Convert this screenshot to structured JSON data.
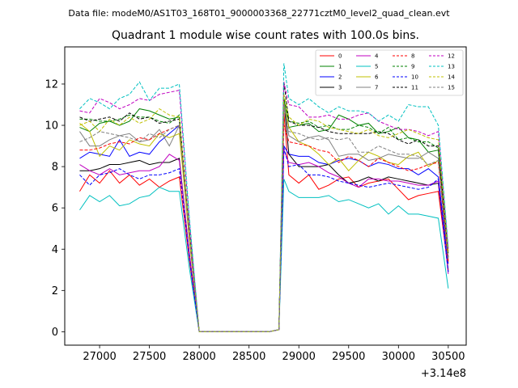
{
  "chart_data": {
    "type": "line",
    "suptitle": "Data file: modeM0/AS1T03_168T01_9000003368_22771cztM0_level2_quad_clean.evt",
    "title": "Quadrant 1 module wise count rates with 100.0s bins.",
    "xlabel": "",
    "ylabel": "",
    "x_offset_label": "+3.14e8",
    "xlim": [
      26650,
      30680
    ],
    "ylim": [
      -0.65,
      13.8
    ],
    "xticks": [
      27000,
      27500,
      28000,
      28500,
      29000,
      29500,
      30000,
      30500
    ],
    "xtick_labels": [
      "27000",
      "27500",
      "28000",
      "28500",
      "29000",
      "29500",
      "30000",
      "30500"
    ],
    "yticks": [
      0,
      2,
      4,
      6,
      8,
      10,
      12
    ],
    "ytick_labels": [
      "0",
      "2",
      "4",
      "6",
      "8",
      "10",
      "12"
    ],
    "legend_position": "top-right",
    "x": [
      26800,
      26900,
      27000,
      27100,
      27200,
      27300,
      27400,
      27500,
      27600,
      27700,
      27800,
      27900,
      28000,
      28100,
      28200,
      28300,
      28400,
      28500,
      28600,
      28700,
      28800,
      28850,
      28900,
      29000,
      29100,
      29200,
      29300,
      29400,
      29500,
      29600,
      29700,
      29800,
      29900,
      30000,
      30100,
      30200,
      30300,
      30400,
      30500
    ],
    "series": [
      {
        "name": "0",
        "color": "#ff0000",
        "dash": "solid",
        "values": [
          6.8,
          7.6,
          7.2,
          7.8,
          7.2,
          7.6,
          7.1,
          7.4,
          7.0,
          7.3,
          7.5,
          3.5,
          0.0,
          0.0,
          0.0,
          0.0,
          0.0,
          0.0,
          0.0,
          0.0,
          0.1,
          10.6,
          7.6,
          7.2,
          7.6,
          6.9,
          7.1,
          7.4,
          7.5,
          7.0,
          7.2,
          7.3,
          7.4,
          6.9,
          6.4,
          6.6,
          6.7,
          6.8,
          3.0
        ]
      },
      {
        "name": "1",
        "color": "#008000",
        "dash": "solid",
        "values": [
          9.9,
          9.7,
          10.1,
          10.2,
          10.0,
          10.2,
          10.8,
          10.7,
          10.5,
          10.3,
          10.4,
          4.9,
          0.0,
          0.0,
          0.0,
          0.0,
          0.0,
          0.0,
          0.0,
          0.0,
          0.1,
          11.3,
          9.9,
          10.0,
          10.1,
          9.7,
          9.8,
          10.5,
          10.3,
          10.0,
          10.1,
          9.6,
          9.7,
          9.9,
          9.4,
          9.3,
          8.7,
          8.8,
          3.9
        ]
      },
      {
        "name": "2",
        "color": "#0000ff",
        "dash": "solid",
        "values": [
          8.4,
          8.7,
          8.6,
          8.5,
          9.3,
          8.5,
          8.7,
          8.6,
          9.2,
          9.6,
          10.0,
          4.6,
          0.0,
          0.0,
          0.0,
          0.0,
          0.0,
          0.0,
          0.0,
          0.0,
          0.1,
          9.0,
          8.6,
          8.5,
          8.5,
          8.2,
          8.1,
          8.3,
          8.4,
          8.3,
          8.0,
          8.2,
          8.1,
          7.9,
          7.9,
          7.6,
          7.9,
          7.5,
          3.3
        ]
      },
      {
        "name": "3",
        "color": "#000000",
        "dash": "solid",
        "values": [
          7.8,
          7.8,
          7.9,
          8.1,
          8.1,
          8.2,
          8.3,
          8.1,
          8.2,
          8.2,
          8.4,
          3.8,
          0.0,
          0.0,
          0.0,
          0.0,
          0.0,
          0.0,
          0.0,
          0.0,
          0.1,
          11.2,
          8.6,
          8.0,
          8.0,
          8.0,
          8.1,
          7.6,
          7.2,
          7.3,
          7.5,
          7.3,
          7.5,
          7.4,
          7.3,
          7.2,
          7.1,
          7.2,
          2.9
        ]
      },
      {
        "name": "4",
        "color": "#c000c0",
        "dash": "solid",
        "values": [
          8.1,
          7.8,
          7.6,
          7.9,
          7.6,
          7.7,
          7.8,
          7.8,
          8.0,
          8.6,
          8.3,
          3.8,
          0.0,
          0.0,
          0.0,
          0.0,
          0.0,
          0.0,
          0.0,
          0.0,
          0.1,
          8.8,
          8.2,
          8.1,
          8.2,
          8.0,
          7.7,
          7.5,
          7.2,
          7.0,
          7.4,
          7.4,
          7.3,
          7.3,
          7.2,
          7.1,
          7.1,
          7.3,
          2.8
        ]
      },
      {
        "name": "5",
        "color": "#00c0c0",
        "dash": "solid",
        "values": [
          5.9,
          6.6,
          6.3,
          6.6,
          6.1,
          6.2,
          6.5,
          6.6,
          7.0,
          6.8,
          6.8,
          3.1,
          0.0,
          0.0,
          0.0,
          0.0,
          0.0,
          0.0,
          0.0,
          0.0,
          0.1,
          7.4,
          6.8,
          6.5,
          6.5,
          6.5,
          6.6,
          6.3,
          6.4,
          6.2,
          6.0,
          6.2,
          5.7,
          6.1,
          5.7,
          5.7,
          5.6,
          5.5,
          2.1
        ]
      },
      {
        "name": "6",
        "color": "#c0c000",
        "dash": "solid",
        "values": [
          10.1,
          9.7,
          8.5,
          9.0,
          8.8,
          9.3,
          9.1,
          9.0,
          9.6,
          9.4,
          9.6,
          4.5,
          0.0,
          0.0,
          0.0,
          0.0,
          0.0,
          0.0,
          0.0,
          0.0,
          0.1,
          11.1,
          9.9,
          9.2,
          9.0,
          8.6,
          8.1,
          8.4,
          7.8,
          8.3,
          8.7,
          8.5,
          8.2,
          8.1,
          8.5,
          8.7,
          8.0,
          8.3,
          3.4
        ]
      },
      {
        "name": "7",
        "color": "#808080",
        "dash": "solid",
        "values": [
          9.7,
          9.0,
          9.0,
          9.3,
          9.5,
          9.6,
          9.2,
          9.3,
          9.8,
          9.0,
          10.0,
          4.7,
          0.0,
          0.0,
          0.0,
          0.0,
          0.0,
          0.0,
          0.0,
          0.0,
          0.1,
          11.1,
          9.5,
          9.2,
          9.4,
          9.5,
          9.3,
          8.5,
          8.6,
          8.6,
          8.3,
          8.4,
          8.6,
          8.5,
          8.4,
          8.4,
          8.7,
          8.4,
          3.5
        ]
      },
      {
        "name": "8",
        "color": "#ff0000",
        "dash": "dashed",
        "values": [
          8.8,
          8.8,
          8.9,
          9.1,
          9.2,
          9.1,
          9.4,
          9.3,
          9.6,
          9.8,
          10.0,
          4.6,
          0.0,
          0.0,
          0.0,
          0.0,
          0.0,
          0.0,
          0.0,
          0.0,
          0.1,
          10.0,
          9.2,
          9.1,
          9.0,
          8.8,
          8.7,
          8.2,
          8.5,
          8.3,
          8.0,
          8.4,
          8.2,
          8.0,
          7.8,
          7.9,
          8.1,
          8.2,
          3.4
        ]
      },
      {
        "name": "9",
        "color": "#008000",
        "dash": "dashed",
        "values": [
          10.3,
          10.3,
          10.2,
          10.2,
          10.3,
          10.5,
          10.4,
          10.4,
          10.2,
          10.1,
          10.5,
          4.8,
          0.0,
          0.0,
          0.0,
          0.0,
          0.0,
          0.0,
          0.0,
          0.0,
          0.1,
          11.3,
          10.2,
          10.1,
          10.2,
          9.9,
          10.0,
          9.8,
          9.8,
          10.0,
          9.9,
          9.6,
          9.9,
          9.3,
          9.4,
          9.2,
          9.2,
          8.9,
          3.8
        ]
      },
      {
        "name": "10",
        "color": "#0000ff",
        "dash": "dashed",
        "values": [
          7.6,
          7.1,
          7.6,
          7.7,
          7.9,
          7.6,
          7.4,
          7.6,
          7.6,
          7.7,
          7.9,
          3.6,
          0.0,
          0.0,
          0.0,
          0.0,
          0.0,
          0.0,
          0.0,
          0.0,
          0.1,
          8.9,
          8.0,
          8.1,
          7.6,
          7.6,
          7.5,
          7.3,
          7.2,
          7.1,
          7.0,
          7.1,
          7.2,
          7.1,
          7.0,
          6.9,
          7.0,
          7.4,
          2.9
        ]
      },
      {
        "name": "11",
        "color": "#000000",
        "dash": "dashed",
        "values": [
          10.4,
          10.2,
          10.3,
          10.4,
          10.2,
          10.6,
          10.3,
          10.4,
          10.1,
          10.2,
          10.3,
          4.8,
          0.0,
          0.0,
          0.0,
          0.0,
          0.0,
          0.0,
          0.0,
          0.0,
          0.1,
          12.1,
          10.2,
          10.0,
          10.0,
          9.9,
          9.7,
          9.6,
          9.6,
          9.6,
          9.6,
          9.7,
          9.6,
          9.3,
          9.1,
          9.3,
          9.0,
          9.0,
          3.6
        ]
      },
      {
        "name": "12",
        "color": "#c000c0",
        "dash": "dashed",
        "values": [
          10.7,
          10.6,
          11.3,
          11.1,
          10.8,
          11.0,
          11.3,
          11.2,
          11.5,
          11.6,
          11.7,
          5.4,
          0.0,
          0.0,
          0.0,
          0.0,
          0.0,
          0.0,
          0.0,
          0.0,
          0.1,
          12.1,
          11.0,
          10.9,
          10.4,
          10.4,
          10.5,
          10.3,
          10.3,
          10.5,
          10.6,
          10.2,
          10.0,
          9.8,
          9.8,
          9.7,
          9.5,
          9.7,
          4.0
        ]
      },
      {
        "name": "13",
        "color": "#00c0c0",
        "dash": "dashed",
        "values": [
          10.8,
          11.3,
          11.1,
          10.8,
          11.3,
          11.5,
          12.1,
          11.2,
          11.8,
          11.8,
          12.0,
          5.6,
          0.0,
          0.0,
          0.0,
          0.0,
          0.0,
          0.0,
          0.0,
          0.0,
          0.1,
          13.0,
          11.3,
          11.0,
          11.3,
          10.9,
          10.6,
          10.9,
          10.7,
          10.7,
          10.6,
          10.2,
          10.5,
          10.2,
          11.0,
          10.9,
          10.9,
          10.0,
          4.1
        ]
      },
      {
        "name": "14",
        "color": "#c0c000",
        "dash": "dashed",
        "values": [
          10.0,
          10.2,
          9.7,
          10.3,
          10.0,
          10.4,
          10.1,
          10.3,
          10.8,
          10.5,
          10.4,
          4.8,
          0.0,
          0.0,
          0.0,
          0.0,
          0.0,
          0.0,
          0.0,
          0.0,
          0.1,
          11.5,
          10.4,
          10.0,
          10.3,
          10.2,
          9.9,
          9.8,
          9.7,
          9.6,
          9.8,
          9.5,
          9.4,
          9.6,
          9.8,
          9.6,
          9.4,
          9.3,
          3.8
        ]
      },
      {
        "name": "15",
        "color": "#808080",
        "dash": "dashed",
        "values": [
          9.2,
          9.4,
          9.7,
          9.6,
          9.5,
          9.4,
          9.2,
          9.6,
          9.4,
          9.8,
          10.0,
          4.7,
          0.0,
          0.0,
          0.0,
          0.0,
          0.0,
          0.0,
          0.0,
          0.0,
          0.1,
          11.0,
          9.7,
          9.6,
          9.4,
          9.3,
          9.4,
          9.3,
          9.4,
          8.7,
          8.7,
          9.0,
          8.8,
          8.6,
          8.6,
          8.5,
          8.1,
          8.3,
          3.5
        ]
      }
    ]
  }
}
